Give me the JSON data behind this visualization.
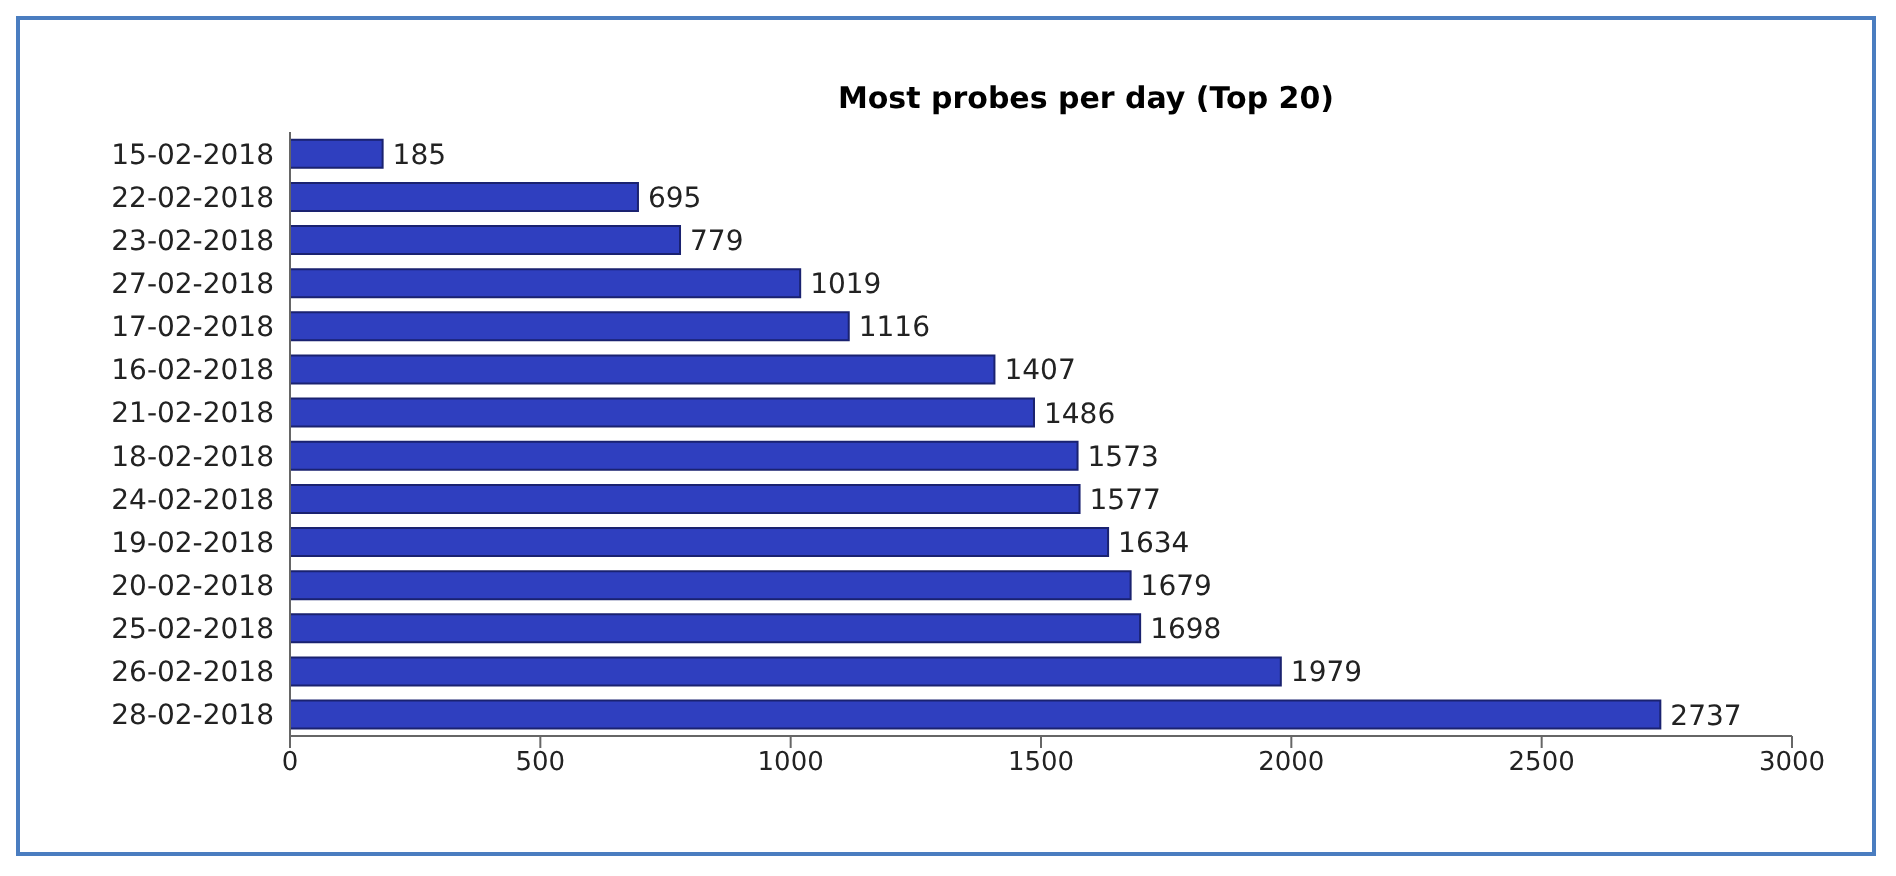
{
  "chart_data": {
    "type": "bar",
    "orientation": "horizontal",
    "title": "Most probes per day (Top 20)",
    "categories": [
      "15-02-2018",
      "22-02-2018",
      "23-02-2018",
      "27-02-2018",
      "17-02-2018",
      "16-02-2018",
      "21-02-2018",
      "18-02-2018",
      "24-02-2018",
      "19-02-2018",
      "20-02-2018",
      "25-02-2018",
      "26-02-2018",
      "28-02-2018"
    ],
    "values": [
      185,
      695,
      779,
      1019,
      1116,
      1407,
      1486,
      1573,
      1577,
      1634,
      1679,
      1698,
      1979,
      2737
    ],
    "color": "#2f3fbf",
    "xlim": [
      0,
      3000
    ],
    "xticks": [
      0,
      500,
      1000,
      1500,
      2000,
      2500,
      3000
    ],
    "data_labels": true,
    "grid": false
  }
}
